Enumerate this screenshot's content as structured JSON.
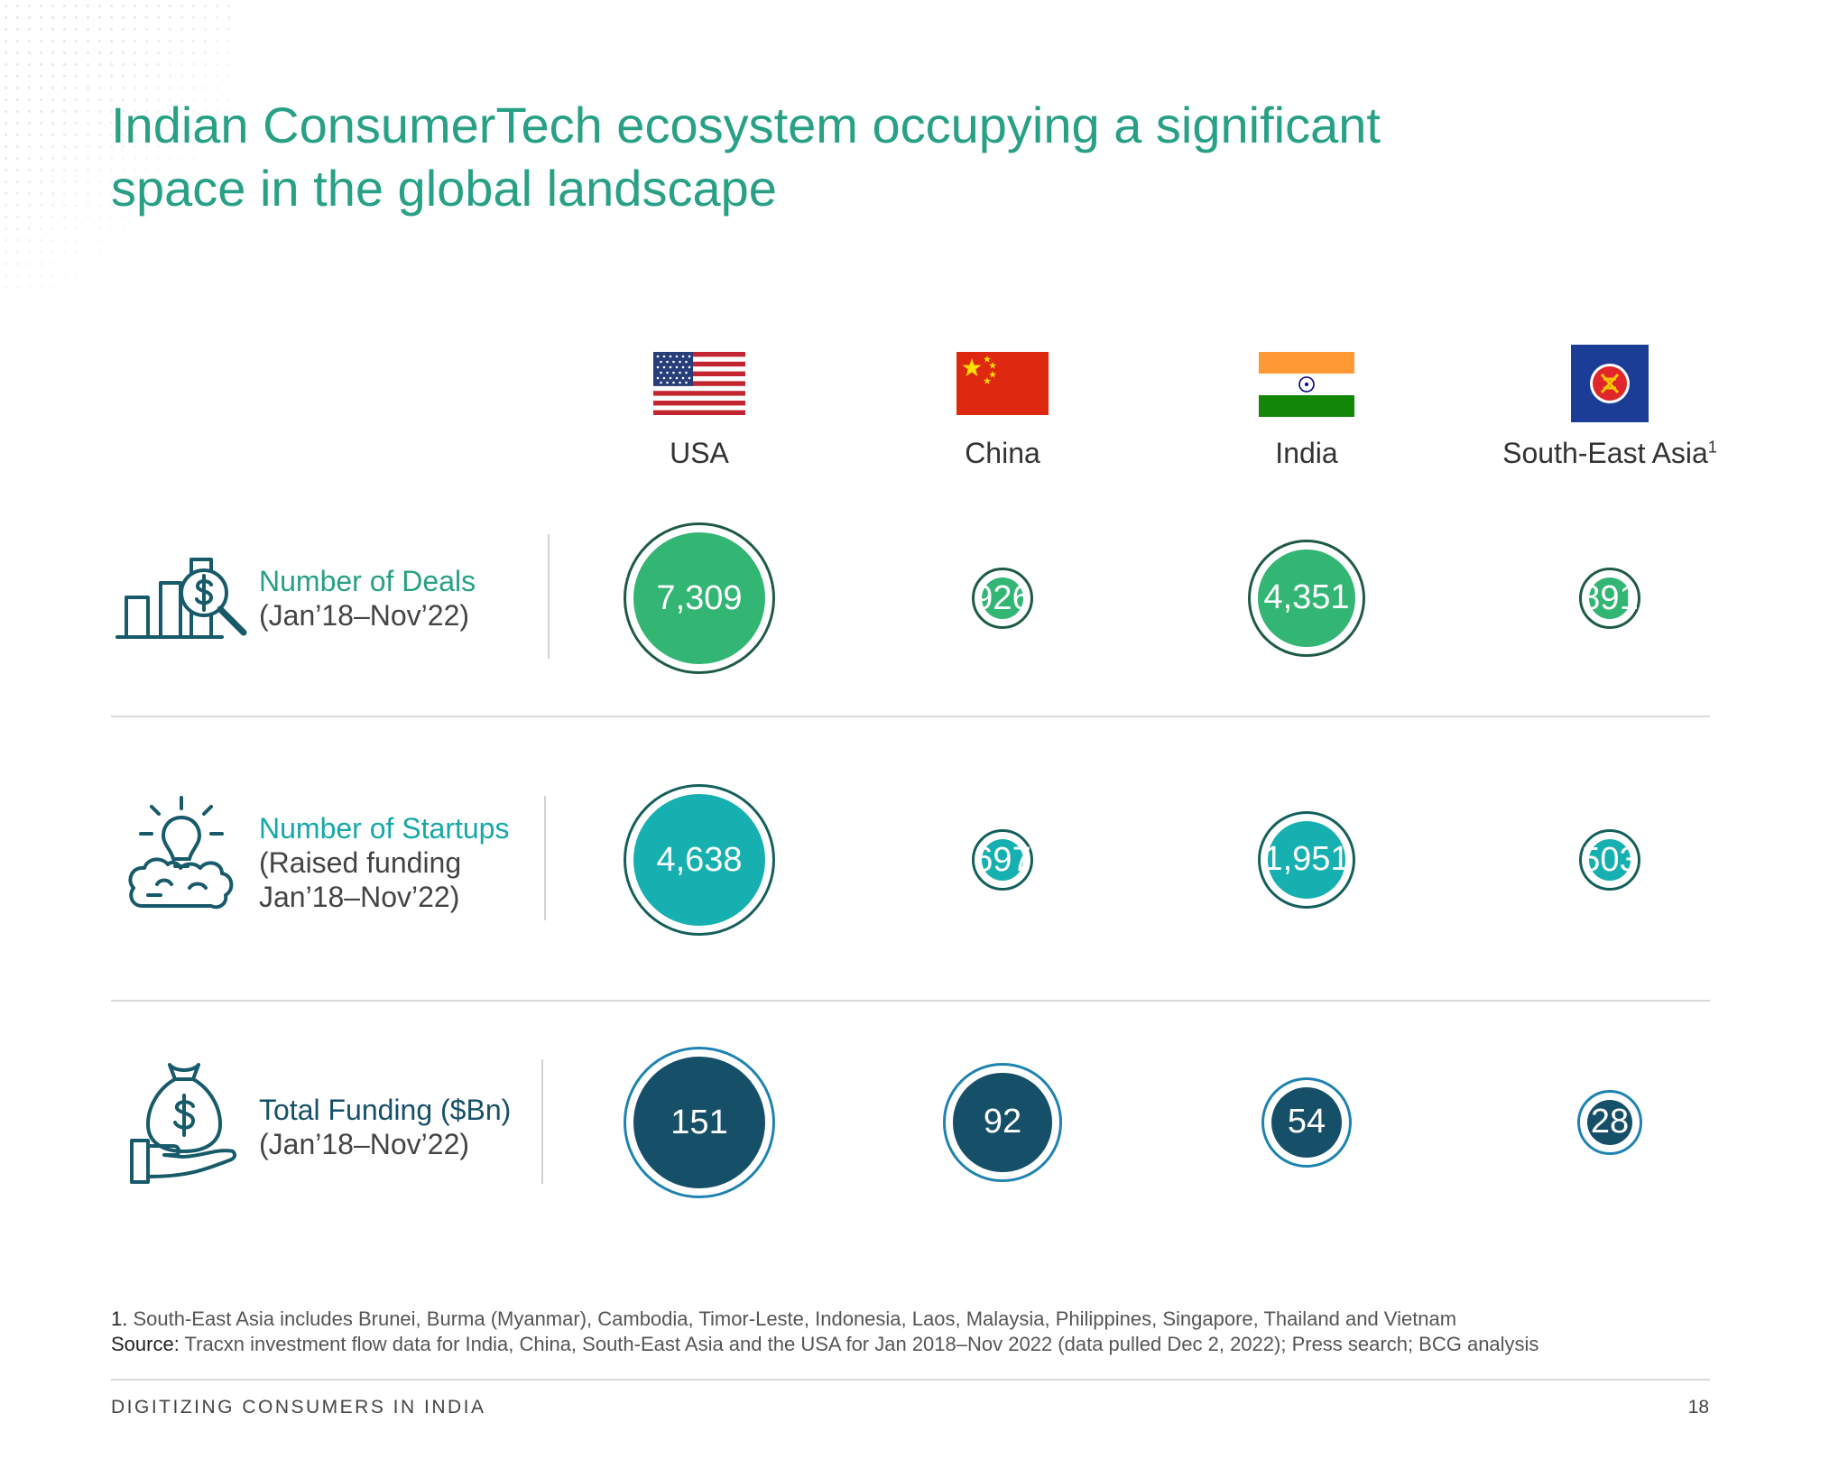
{
  "title_line1": "Indian ConsumerTech ecosystem occupying a significant",
  "title_line2": "space in the global landscape",
  "countries": [
    {
      "name": "USA",
      "flag": "usa-flag"
    },
    {
      "name": "China",
      "flag": "china-flag"
    },
    {
      "name": "India",
      "flag": "india-flag"
    },
    {
      "name": "South-East Asia",
      "sup": "1",
      "flag": "asean-flag"
    }
  ],
  "metrics": [
    {
      "label": "Number of Deals",
      "sub": "(Jan’18–Nov’22)",
      "icon": "deals-chart-dollar-icon",
      "color": "#33b574",
      "ring": "#1e5a45",
      "values": [
        "7,309",
        "926",
        "4,351",
        "891"
      ]
    },
    {
      "label": "Number of Startups",
      "sub": "(Raised funding\nJan’18–Nov’22)",
      "icon": "lightbulb-brain-icon",
      "color": "#16b0b0",
      "ring": "#145f5c",
      "values": [
        "4,638",
        "697",
        "1,951",
        "503"
      ]
    },
    {
      "label": "Total Funding ($Bn)",
      "sub": "(Jan’18–Nov’22)",
      "icon": "money-bag-hand-icon",
      "color": "#165068",
      "ring": "#1e83b0",
      "values": [
        "151",
        "92",
        "54",
        "28"
      ]
    }
  ],
  "colors": {
    "title": "#27a085",
    "deals_label": "#27a085",
    "startups_label": "#16a8a8",
    "funding_label": "#165068"
  },
  "footnote1_marker": "1.",
  "footnote1": "South-East Asia includes Brunei, Burma (Myanmar), Cambodia, Timor-Leste, Indonesia, Laos, Malaysia, Philippines, Singapore, Thailand and Vietnam",
  "source_label": "Source:",
  "source": "Tracxn investment flow data for India, China, South-East Asia and the USA for Jan 2018–Nov 2022 (data pulled Dec 2, 2022); Press search; BCG analysis",
  "publication": "DIGITIZING CONSUMERS IN INDIA",
  "page_number": "18"
}
